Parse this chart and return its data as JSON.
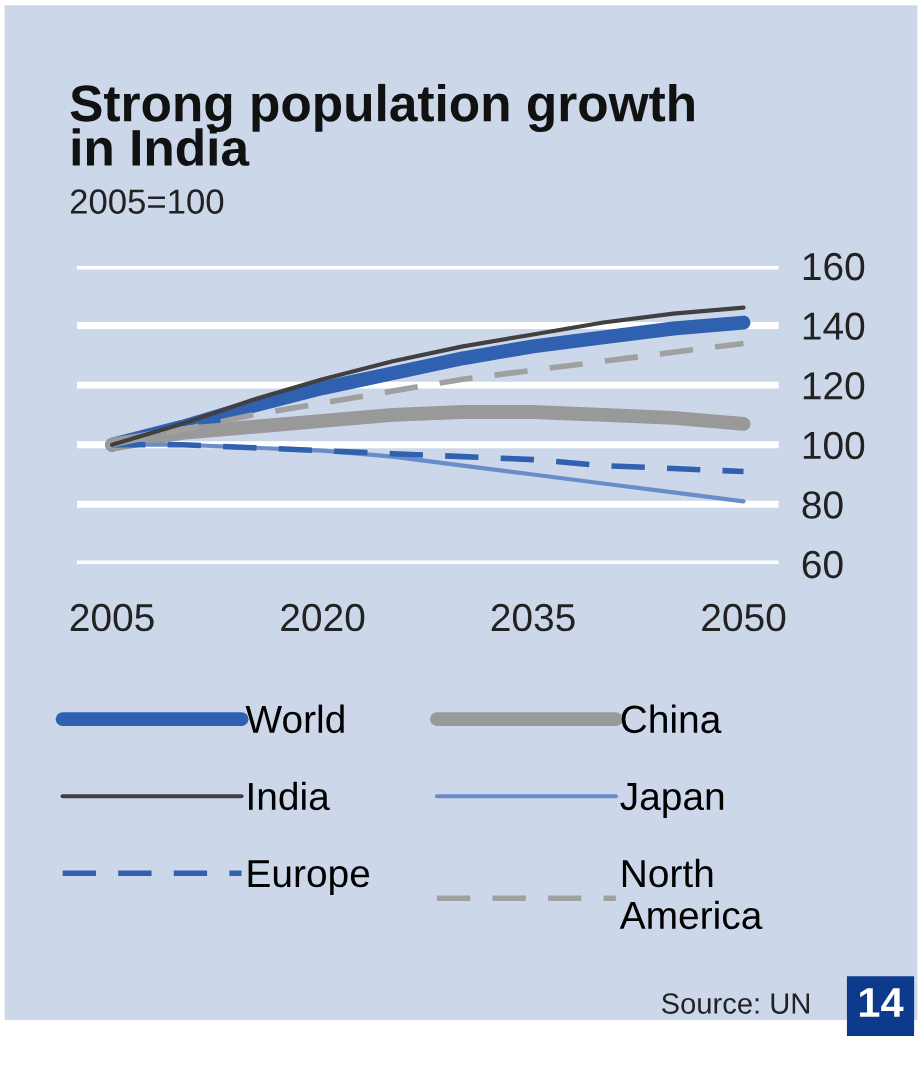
{
  "chart_data": {
    "type": "line",
    "title": "Strong population growth\nin India",
    "subtitle": "2005=100",
    "x": [
      2005,
      2010,
      2015,
      2020,
      2025,
      2030,
      2035,
      2040,
      2045,
      2050
    ],
    "series": [
      {
        "name": "World",
        "color": "#3060b0",
        "line_style": "solid",
        "values": [
          100,
          106,
          113,
          119,
          124,
          129,
          133,
          136,
          139,
          141
        ]
      },
      {
        "name": "China",
        "color": "#999999",
        "line_style": "solid",
        "values": [
          100,
          104,
          106,
          108,
          110,
          111,
          111,
          110,
          109,
          107
        ]
      },
      {
        "name": "India",
        "color": "#404040",
        "line_style": "solid",
        "values": [
          100,
          107,
          115,
          122,
          128,
          133,
          137,
          141,
          144,
          146
        ]
      },
      {
        "name": "Japan",
        "color": "#6a8cc8",
        "line_style": "solid",
        "values": [
          100,
          100,
          99,
          98,
          96,
          93,
          90,
          87,
          84,
          81
        ]
      },
      {
        "name": "Europe",
        "color": "#3060b0",
        "line_style": "dashed",
        "values": [
          100,
          100,
          99,
          98,
          97,
          96,
          95,
          93,
          92,
          91
        ]
      },
      {
        "name": "North\nAmerica",
        "color": "#a0a0a0",
        "line_style": "dashed",
        "values": [
          100,
          105,
          110,
          114,
          118,
          122,
          125,
          128,
          131,
          134
        ]
      }
    ],
    "xlim": [
      2002.5,
      2052.5
    ],
    "xticks": [
      2005,
      2020,
      2035,
      2050
    ],
    "ylim": [
      60,
      160
    ],
    "yticks": [
      60,
      80,
      100,
      120,
      140,
      160
    ],
    "grid": "y",
    "legend": "bottom",
    "marker": "none",
    "annotations": [
      "Source: UN",
      "14"
    ]
  }
}
